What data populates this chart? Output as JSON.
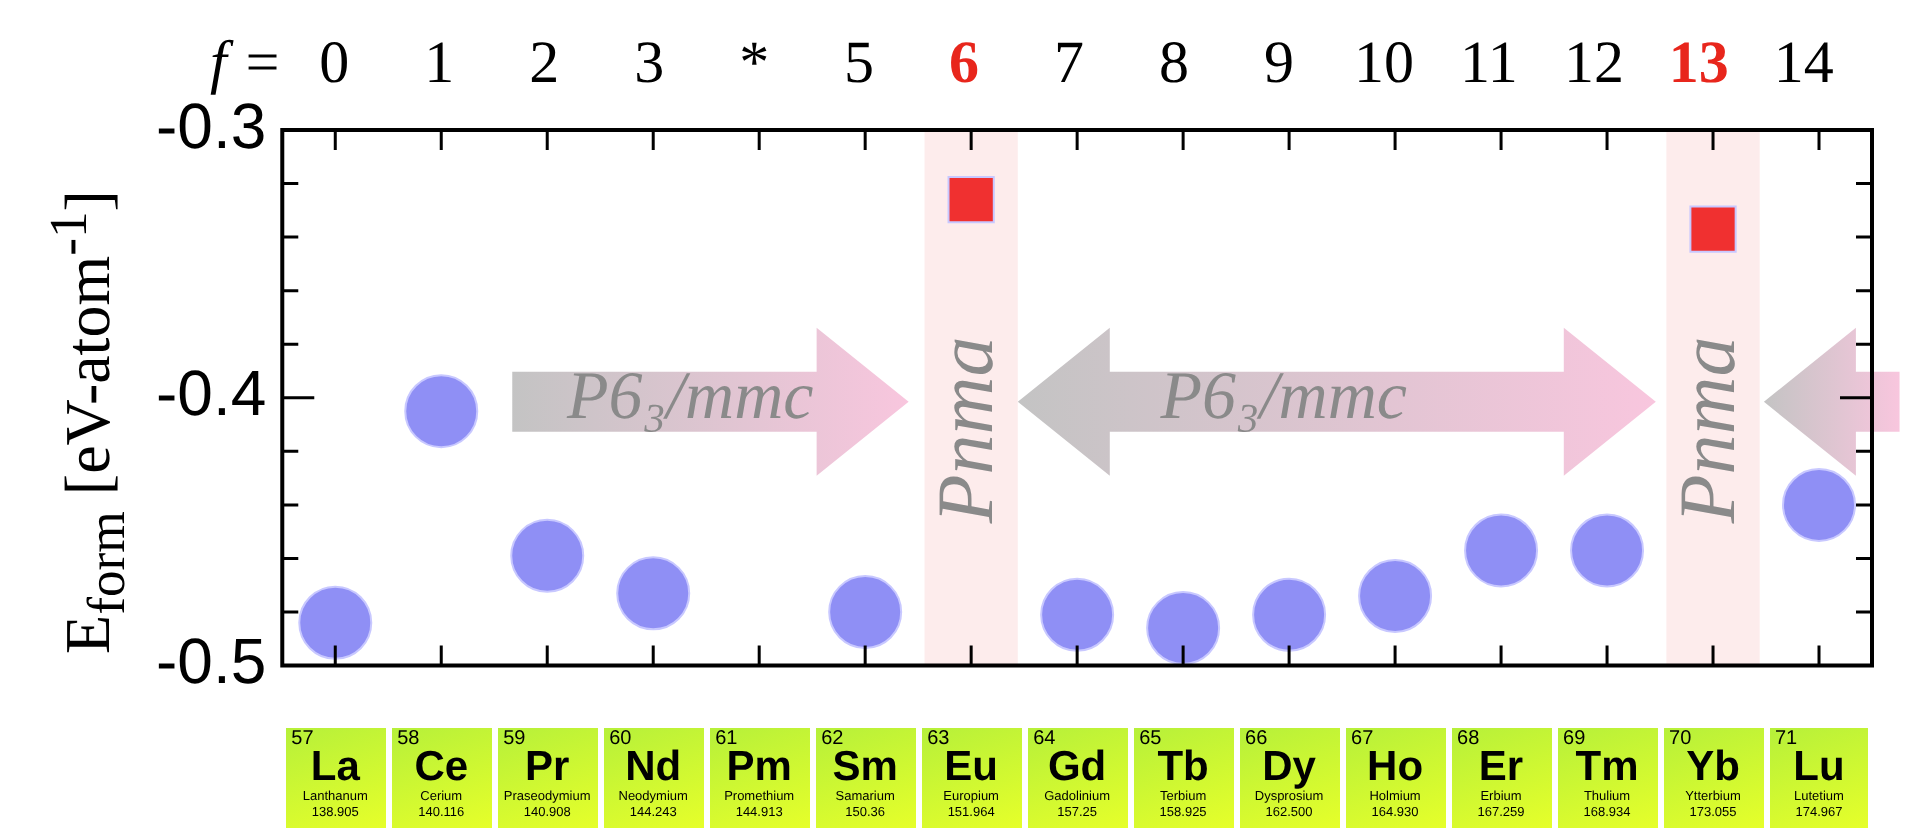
{
  "chart_data": {
    "type": "scatter",
    "ylabel": "E$_{form}$ [eV-atom$^{-1}$]",
    "categories": [
      "La",
      "Ce",
      "Pr",
      "Nd",
      "Pm",
      "Sm",
      "Eu",
      "Gd",
      "Tb",
      "Dy",
      "Ho",
      "Er",
      "Tm",
      "Yb",
      "Lu"
    ],
    "series": [
      {
        "marker": "circle",
        "color": "#8f8ff5",
        "values": [
          -0.484,
          -0.405,
          -0.459,
          -0.473,
          null,
          -0.48,
          null,
          -0.481,
          -0.486,
          -0.481,
          -0.474,
          -0.457,
          -0.457,
          null,
          -0.44
        ]
      },
      {
        "marker": "square",
        "color": "#f03030",
        "values": [
          null,
          null,
          null,
          null,
          null,
          null,
          -0.326,
          null,
          null,
          null,
          null,
          null,
          null,
          -0.337,
          null
        ]
      }
    ],
    "ylim": [
      -0.5,
      -0.3
    ],
    "yticks": [
      -0.5,
      {
        "value": -0.48,
        "label": null
      },
      {
        "value": -0.46,
        "label": null
      },
      {
        "value": -0.44,
        "label": null
      },
      {
        "value": -0.42,
        "label": null
      },
      -0.4,
      {
        "value": -0.38,
        "label": null
      },
      {
        "value": -0.36,
        "label": null
      },
      {
        "value": -0.34,
        "label": null
      },
      {
        "value": -0.32,
        "label": null
      },
      -0.3
    ],
    "tick_labels": "y",
    "grid": false,
    "legend": false,
    "bands": [
      {
        "axis": "x",
        "from": "Eu",
        "to": "Eu",
        "label": "Pnma",
        "color": "#fdecec"
      },
      {
        "axis": "x",
        "from": "Yb",
        "to": "Yb",
        "label": "Pnma",
        "color": "#fdecec"
      }
    ],
    "annotations": [
      "f = 0 1 2 3 * 5 6 7 8 9 10 11 12 13 14",
      "P6₃/mmc",
      "P6₃/mmc",
      "57",
      "Lanthanum",
      "138.905",
      "58",
      "Cerium",
      "140.116",
      "59",
      "Praseodymium",
      "140.908",
      "60",
      "Neodymium",
      "144.243",
      "61",
      "Promethium",
      "144.913",
      "62",
      "Samarium",
      "150.36",
      "63",
      "Europium",
      "151.964",
      "64",
      "Gadolinium",
      "157.25",
      "65",
      "Terbium",
      "158.925",
      "66",
      "Dysprosium",
      "162.500",
      "67",
      "Holmium",
      "164.930",
      "68",
      "Erbium",
      "167.259",
      "69",
      "Thulium",
      "168.934",
      "70",
      "Ytterbium",
      "173.055",
      "71",
      "Lutetium",
      "174.967"
    ]
  }
}
